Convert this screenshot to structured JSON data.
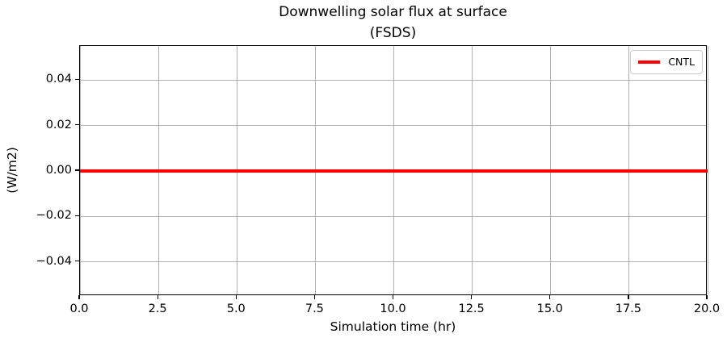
{
  "figure": {
    "background": "#ffffff"
  },
  "chart_data": {
    "type": "line",
    "title": "Downwelling solar flux at surface",
    "subtitle": "(FSDS)",
    "xlabel": "Simulation time (hr)",
    "ylabel": "(W/m2)",
    "xlim": [
      0,
      20
    ],
    "ylim": [
      -0.055,
      0.055
    ],
    "xtick_values": [
      0,
      2.5,
      5,
      7.5,
      10,
      12.5,
      15,
      17.5,
      20
    ],
    "xtick_labels": [
      "0.0",
      "2.5",
      "5.0",
      "7.5",
      "10.0",
      "12.5",
      "15.0",
      "17.5",
      "20.0"
    ],
    "ytick_values": [
      0.04,
      0.02,
      0,
      -0.02,
      -0.04
    ],
    "ytick_labels": [
      "0.04",
      "0.02",
      "0.00",
      "−0.02",
      "−0.04"
    ],
    "grid": true,
    "grid_color": "#b0b0b0",
    "axis_color": "#000000",
    "legend": {
      "position": "upper right",
      "entries": [
        "CNTL"
      ]
    },
    "series": [
      {
        "name": "CNTL",
        "color": "#ff0000",
        "linewidth": 4,
        "x": [
          0,
          20
        ],
        "y": [
          0,
          0
        ]
      }
    ]
  }
}
